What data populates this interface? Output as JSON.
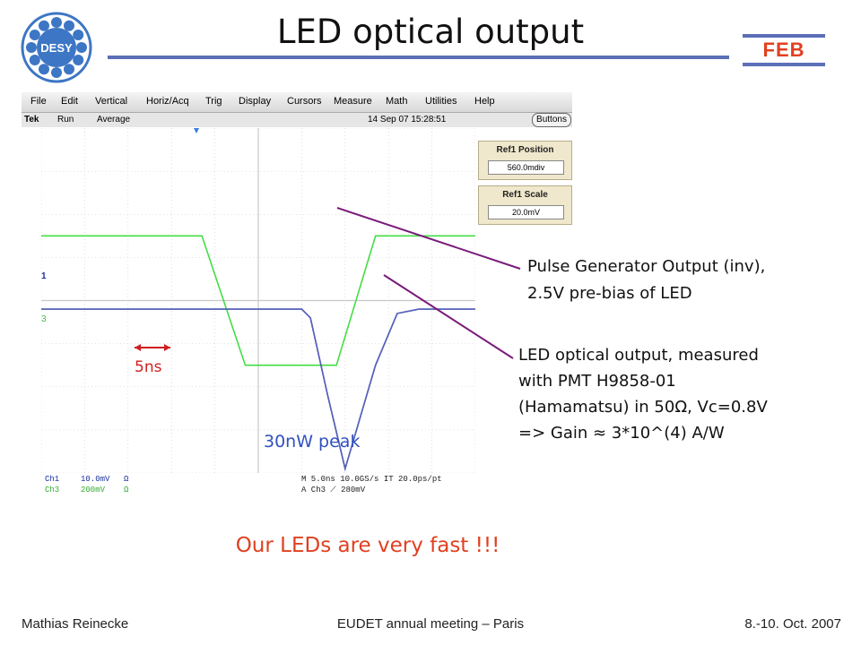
{
  "slide": {
    "title": "LED optical output",
    "logo_text": "DESY",
    "tag": "FEB",
    "headline": "Our LEDs are very fast !!!"
  },
  "scope": {
    "menu": [
      "File",
      "Edit",
      "Vertical",
      "Horiz/Acq",
      "Trig",
      "Display",
      "Cursors",
      "Measure",
      "Math",
      "Utilities",
      "Help"
    ],
    "status": {
      "brand": "Tek",
      "run": "Run",
      "mode": "Average",
      "timestamp": "14 Sep 07 15:28:51",
      "buttons_label": "Buttons"
    },
    "ref_boxes": [
      {
        "label": "Ref1 Position",
        "value": "560.0mdiv"
      },
      {
        "label": "Ref1 Scale",
        "value": "20.0mV"
      }
    ],
    "channel_markers": {
      "ch1": "1",
      "ch3": "3"
    },
    "readout": {
      "ch1_name": "Ch1",
      "ch1_scale": "10.0mV",
      "ch1_coupling": "Ω",
      "ch3_name": "Ch3",
      "ch3_scale": "200mV",
      "ch3_coupling": "Ω",
      "timebase": "M 5.0ns 10.0GS/s IT 20.0ps/pt",
      "trigger": "A  Ch3  ⟋  280mV"
    },
    "colors": {
      "ch3_trace": "#44dd44",
      "ch1_trace": "#1a2fa0",
      "ref_trace": "#8888cc",
      "grid": "#c8c8c8"
    }
  },
  "chart_data": {
    "type": "line",
    "xlabel": "",
    "ylabel": "",
    "series": [
      {
        "name": "Pulse Generator Output (inv)",
        "x": [
          0,
          2,
          3.7,
          4.7,
          6.8,
          7.7,
          10
        ],
        "y": [
          1.5,
          1.5,
          1.5,
          -1.5,
          -1.5,
          1.5,
          1.5
        ]
      },
      {
        "name": "LED optical output",
        "x": [
          0,
          6,
          6.2,
          6.6,
          7.0,
          7.7,
          8.2,
          8.7,
          10
        ],
        "y": [
          -0.2,
          -0.2,
          -0.4,
          -2.2,
          -3.9,
          -1.5,
          -0.3,
          -0.2,
          -0.2
        ]
      }
    ]
  },
  "annotations": {
    "pulse_line1": "Pulse Generator Output (inv),",
    "pulse_line2": "2.5V pre-bias of LED",
    "led_line1": "LED optical output, measured",
    "led_line2": "with PMT H9858-01",
    "led_line3": "(Hamamatsu) in 50Ω, Vc=0.8V",
    "led_line4": "=> Gain ≈ 3*10^(4)  A/W",
    "width_label": "5ns",
    "peak_label": "30nW peak"
  },
  "footer": {
    "author": "Mathias Reinecke",
    "event": "EUDET annual meeting – Paris",
    "date": "8.-10. Oct. 2007"
  }
}
